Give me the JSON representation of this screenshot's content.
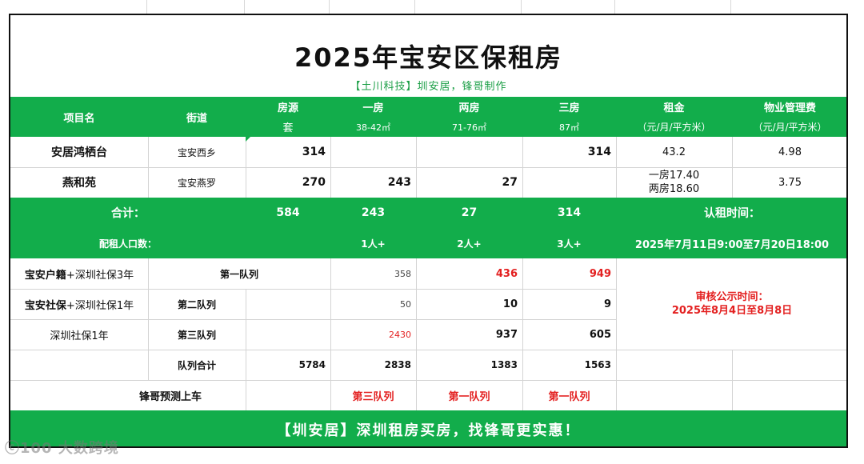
{
  "title": "2025年宝安区保租房",
  "subtitle": "【土川科技】圳安居，锋哥制作",
  "header": {
    "project": "项目名",
    "street": "街道",
    "listings_top": "房源",
    "listings_bottom": "套",
    "one_top": "一房",
    "one_bottom": "38-42㎡",
    "two_top": "两房",
    "two_bottom": "71-76㎡",
    "three_top": "三房",
    "three_bottom": "87㎡",
    "rent_top": "租金",
    "rent_bottom": "（元/月/平方米）",
    "mgmt_top": "物业管理费",
    "mgmt_bottom": "（元/月/平方米）"
  },
  "rows": [
    {
      "project": "安居鸿栖台",
      "street": "宝安西乡",
      "listings": "314",
      "one": "",
      "two": "",
      "three": "314",
      "rent": "43.2",
      "mgmt": "4.98"
    },
    {
      "project": "燕和苑",
      "street": "宝安燕罗",
      "listings": "270",
      "one": "243",
      "two": "27",
      "three": "",
      "rent_line1": "一房17.40",
      "rent_line2": "两房18.60",
      "mgmt": "3.75"
    }
  ],
  "total": {
    "label": "合计：",
    "listings": "584",
    "one": "243",
    "two": "27",
    "three": "314",
    "apply_label": "认租时间："
  },
  "ratio": {
    "label": "配租人口数：",
    "one": "1人+",
    "two": "2人+",
    "three": "3人+",
    "apply_time": "2025年7月11日9:00至7月20日18:00"
  },
  "queues": [
    {
      "name_bold": "宝安户籍",
      "name_rest": "+深圳社保3年",
      "queue": "第一队列",
      "one": "358",
      "two": "436",
      "three": "949"
    },
    {
      "name_bold": "宝安社保",
      "name_rest": "+深圳社保1年",
      "queue": "第二队列",
      "one": "50",
      "two": "10",
      "three": "9"
    },
    {
      "name_bold": "",
      "name_rest": "深圳社保1年",
      "queue": "第三队列",
      "one": "2430",
      "two": "937",
      "three": "605"
    }
  ],
  "queue_total": {
    "label": "队列合计",
    "listings": "5784",
    "one": "2838",
    "two": "1383",
    "three": "1563"
  },
  "review": {
    "line1": "审核公示时间：",
    "line2": "2025年8月4日至8月8日"
  },
  "prediction": {
    "label": "锋哥预测上车",
    "one": "第三队列",
    "two": "第一队列",
    "three": "第一队列"
  },
  "footer": "【圳安居】深圳租房买房，找锋哥更实惠！",
  "watermark": "大数跨境",
  "colors": {
    "green": "#12ad4b",
    "red": "#e32020",
    "subtitle_green": "#1a9e45"
  }
}
